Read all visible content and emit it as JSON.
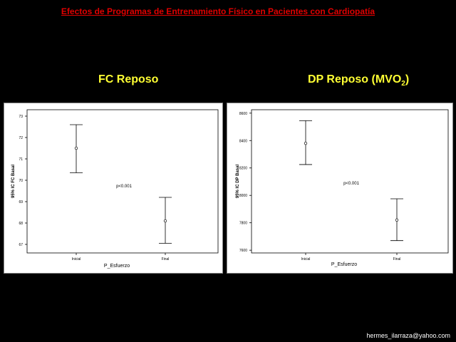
{
  "header": {
    "title": "Efectos de Programas de Entrenamiento Físico en Pacientes con Cardiopatía"
  },
  "panels": {
    "left_title": "FC Reposo",
    "right_title_main": "DP Reposo (MVO",
    "right_title_sub": "2",
    "right_title_end": ")"
  },
  "footer": {
    "email": "hermes_ilarraza@yahoo.com"
  },
  "chart_data": [
    {
      "type": "errorbar",
      "xlabel": "P_Esfuerzo",
      "ylabel": "95% IC FC Basal",
      "categories": [
        "Inicial",
        "Final"
      ],
      "series": [
        {
          "mean": [
            71.5,
            68.1
          ],
          "lower": [
            70.35,
            67.05
          ],
          "upper": [
            72.6,
            69.2
          ]
        }
      ],
      "yticks": [
        67,
        68,
        69,
        70,
        71,
        72,
        73
      ],
      "ylim": [
        66.6,
        73.3
      ],
      "annotation": "p<0.001",
      "grid": false,
      "legend": "none"
    },
    {
      "type": "errorbar",
      "xlabel": "P_Esfuerzo",
      "ylabel": "95% IC DP Basal",
      "categories": [
        "Inicial",
        "Final"
      ],
      "series": [
        {
          "mean": [
            8380,
            7820
          ],
          "lower": [
            8225,
            7670
          ],
          "upper": [
            8545,
            7975
          ]
        }
      ],
      "yticks": [
        7600,
        7800,
        8000,
        8200,
        8400,
        8600
      ],
      "ylim": [
        7580,
        8625
      ],
      "annotation": "p<0.001",
      "grid": false,
      "legend": "none"
    }
  ]
}
